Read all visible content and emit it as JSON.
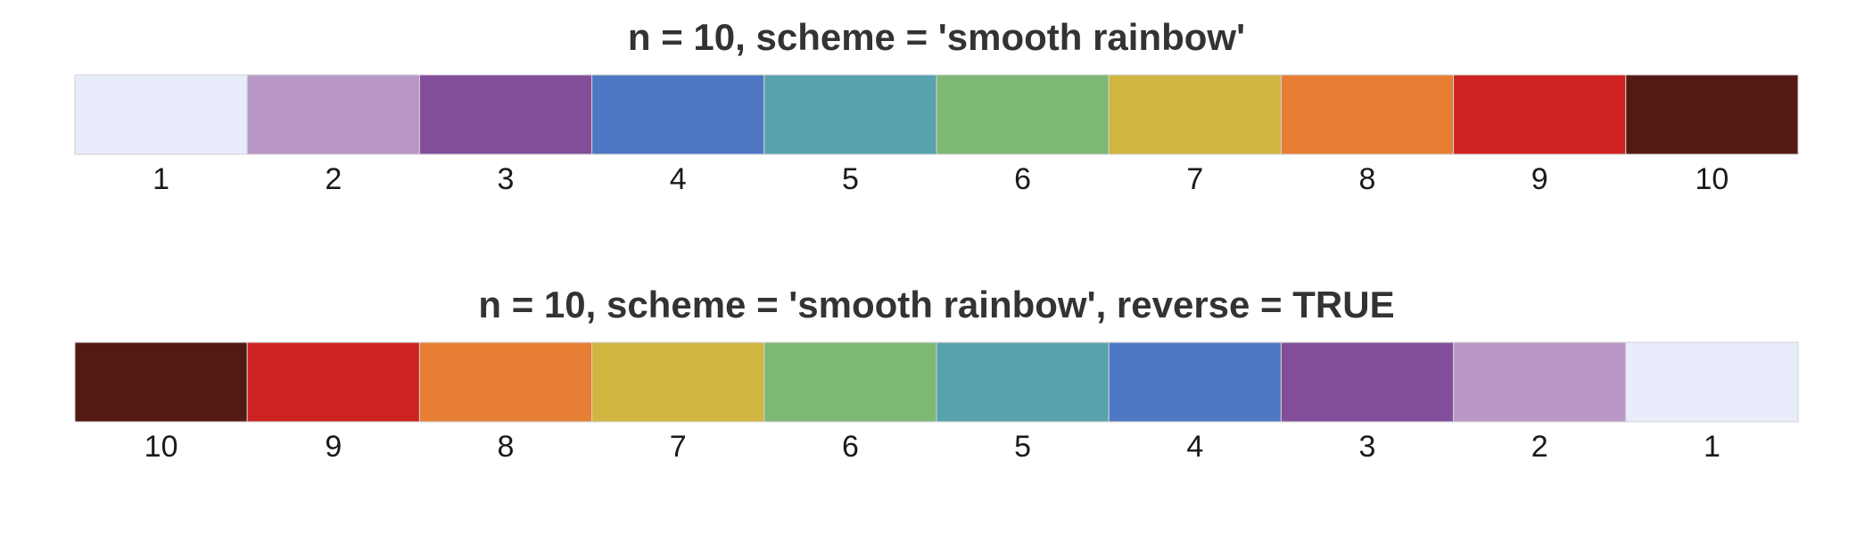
{
  "chart_data": [
    {
      "type": "table",
      "title": "n = 10, scheme = 'smooth rainbow'",
      "labels": [
        "1",
        "2",
        "3",
        "4",
        "5",
        "6",
        "7",
        "8",
        "9",
        "10"
      ],
      "colors": [
        "#E8ECFB",
        "#B997C6",
        "#824D99",
        "#4E78C4",
        "#57A2AC",
        "#7EB875",
        "#D0B541",
        "#E67F33",
        "#CE2220",
        "#521A13"
      ]
    },
    {
      "type": "table",
      "title": "n = 10, scheme = 'smooth rainbow', reverse = TRUE",
      "labels": [
        "10",
        "9",
        "8",
        "7",
        "6",
        "5",
        "4",
        "3",
        "2",
        "1"
      ],
      "colors": [
        "#521A13",
        "#CE2220",
        "#E67F33",
        "#D0B541",
        "#7EB875",
        "#57A2AC",
        "#4E78C4",
        "#824D99",
        "#B997C6",
        "#E8ECFB"
      ]
    }
  ]
}
